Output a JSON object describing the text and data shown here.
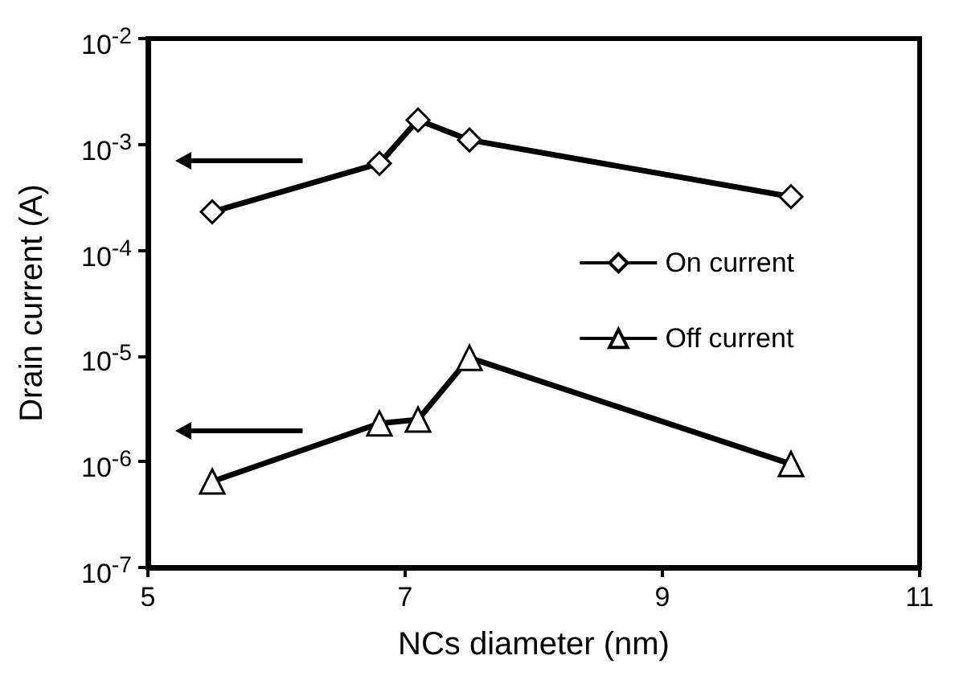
{
  "chart_data": {
    "type": "line",
    "xlabel": "NCs diameter (nm)",
    "ylabel": "Drain current (A)",
    "x": [
      5.5,
      6.8,
      7.1,
      7.5,
      10.0
    ],
    "series": [
      {
        "name": "On current",
        "color": "#000000",
        "marker": "diamond",
        "values": [
          0.00023,
          0.00066,
          0.0017,
          0.0011,
          0.00032
        ]
      },
      {
        "name": "Off current",
        "color": "#000000",
        "marker": "triangle",
        "values": [
          6.5e-07,
          2.3e-06,
          2.5e-06,
          9.6e-06,
          9.5e-07
        ]
      }
    ],
    "xlim": [
      5,
      11
    ],
    "xticks": [
      5,
      7,
      9,
      11
    ],
    "ylim": [
      1e-07,
      0.01
    ],
    "log": "y",
    "yticks": [
      {
        "value": 1e-07,
        "label": "10$^{-7}$"
      },
      {
        "value": 1e-06,
        "label": "10$^{-6}$"
      },
      {
        "value": 1e-05,
        "label": "10$^{-5}$"
      },
      {
        "value": 0.0001,
        "label": "10$^{-4}$"
      },
      {
        "value": 0.001,
        "label": "10$^{-3}$"
      },
      {
        "value": 0.01,
        "label": "10$^{-2}$"
      }
    ],
    "grid": false,
    "legend": "right",
    "line_style": "solid"
  }
}
